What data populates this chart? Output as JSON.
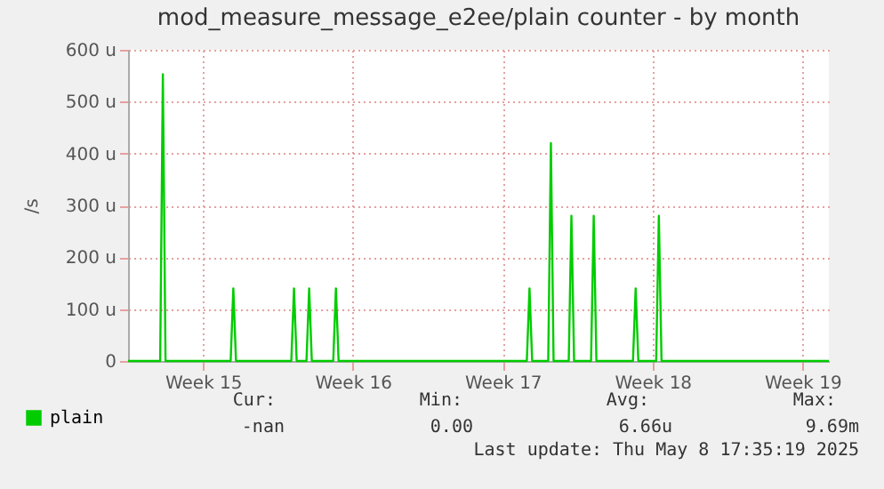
{
  "chart_data": {
    "type": "line",
    "title": "mod_measure_message_e2ee/plain counter - by month",
    "ylabel": "/s",
    "xlim": [
      "2025-04-06T00:00",
      "2025-05-08T17:35"
    ],
    "xticks": [
      {
        "value": "2025-04-09T12:00",
        "label": "Week 15"
      },
      {
        "value": "2025-04-16T12:00",
        "label": "Week 16"
      },
      {
        "value": "2025-04-23T12:00",
        "label": "Week 17"
      },
      {
        "value": "2025-04-30T12:00",
        "label": "Week 18"
      },
      {
        "value": "2025-05-07T12:00",
        "label": "Week 19"
      }
    ],
    "ylim": [
      0,
      600
    ],
    "yticks": [
      0,
      {
        "value": 100,
        "label": "100 u"
      },
      {
        "value": 200,
        "label": "200 u"
      },
      {
        "value": 300,
        "label": "300 u"
      },
      {
        "value": 400,
        "label": "400 u"
      },
      {
        "value": 500,
        "label": "500 u"
      },
      {
        "value": 600,
        "label": "600 u"
      }
    ],
    "series": [
      {
        "name": "plain",
        "color": "#00cc00",
        "x": [
          "2025-04-06T00:00",
          "2025-04-07T12:00",
          "2025-04-07T15:00",
          "2025-04-07T18:00",
          "2025-04-10T19:00",
          "2025-04-10T22:00",
          "2025-04-11T01:00",
          "2025-04-13T15:00",
          "2025-04-13T18:00",
          "2025-04-13T21:00",
          "2025-04-14T08:00",
          "2025-04-14T11:00",
          "2025-04-14T14:00",
          "2025-04-15T14:00",
          "2025-04-15T17:00",
          "2025-04-15T20:00",
          "2025-04-24T15:00",
          "2025-04-24T18:00",
          "2025-04-24T21:00",
          "2025-04-25T15:00",
          "2025-04-25T18:00",
          "2025-04-25T21:00",
          "2025-04-26T14:00",
          "2025-04-26T17:00",
          "2025-04-26T20:00",
          "2025-04-27T15:00",
          "2025-04-27T18:00",
          "2025-04-27T21:00",
          "2025-04-29T14:00",
          "2025-04-29T17:00",
          "2025-04-29T20:00",
          "2025-04-30T16:00",
          "2025-04-30T19:00",
          "2025-04-30T22:00",
          "2025-05-08T17:35"
        ],
        "values": [
          0,
          0,
          553,
          0,
          0,
          140,
          0,
          0,
          140,
          0,
          0,
          140,
          0,
          0,
          140,
          0,
          0,
          140,
          0,
          0,
          420,
          0,
          0,
          280,
          0,
          0,
          280,
          0,
          0,
          140,
          0,
          0,
          280,
          0,
          0
        ]
      }
    ],
    "grid": true,
    "legend": "bottom left",
    "marker": "none",
    "line_style": "solid",
    "annotations": [
      "Cur:",
      "-nan",
      "Min:",
      "0.00",
      "Avg:",
      "6.66u",
      "Max:",
      "9.69m",
      "Last update: Thu May  8 17:35:19 2025"
    ]
  }
}
